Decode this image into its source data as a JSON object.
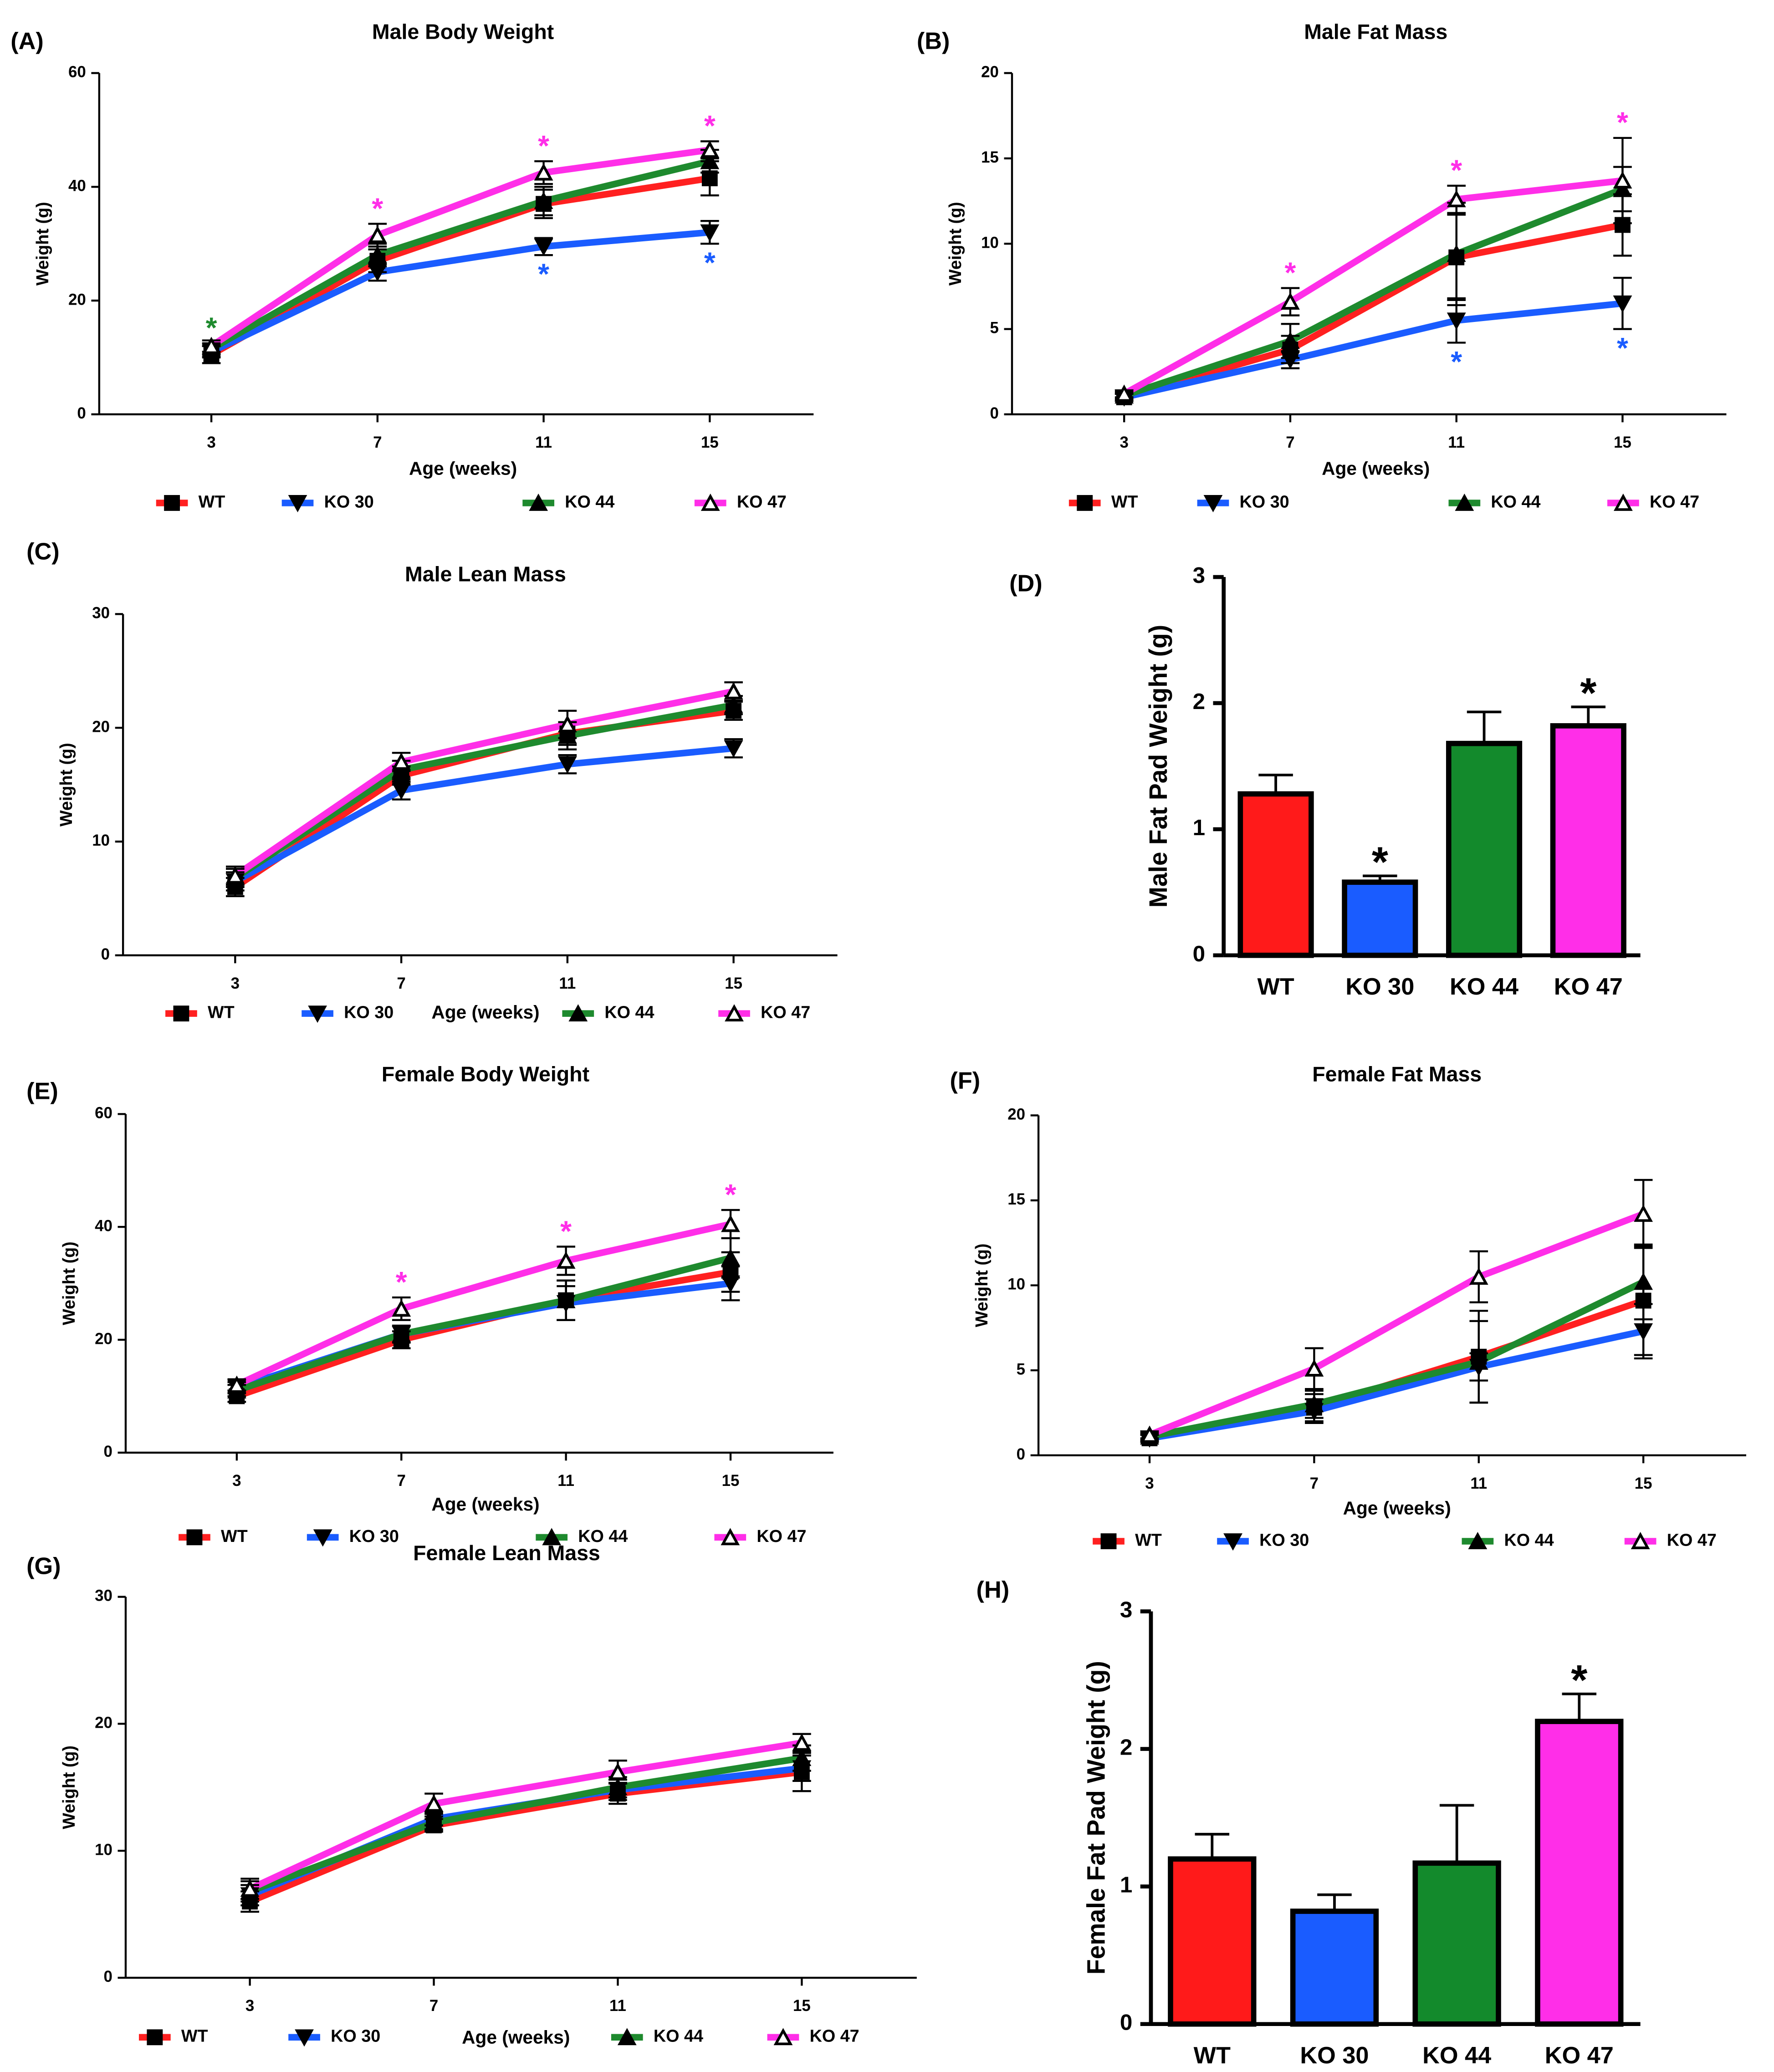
{
  "chart_data": [
    {
      "type": "line",
      "panel_label": "(A)",
      "title": "Male Body Weight",
      "x_label": "Age (weeks)",
      "y_label": "Weight (g)",
      "x": [
        3,
        7,
        11,
        15
      ],
      "xlim": [
        0.3,
        17.5
      ],
      "ylim": [
        0,
        60
      ],
      "xticks": [
        3,
        7,
        11,
        15
      ],
      "yticks": [
        0,
        20,
        40,
        60
      ],
      "series": [
        {
          "name": "WT",
          "color": "#ff2020",
          "marker": "square",
          "values": [
            10.5,
            27,
            37,
            41.5
          ],
          "errors": [
            1.5,
            2,
            2.5,
            3
          ]
        },
        {
          "name": "KO 30",
          "color": "#1a5cff",
          "marker": "triangle-down",
          "values": [
            11,
            25,
            29.5,
            32
          ],
          "errors": [
            1,
            1.5,
            1.5,
            2
          ],
          "significance": [
            null,
            null,
            "*",
            "*"
          ]
        },
        {
          "name": "KO 44",
          "color": "#1e8a2e",
          "marker": "triangle-up",
          "values": [
            11.5,
            28,
            37.5,
            44.5
          ],
          "errors": [
            1,
            2,
            2.5,
            2
          ],
          "significance": [
            "*",
            null,
            null,
            null
          ]
        },
        {
          "name": "KO 47",
          "color": "#ff2ee8",
          "marker": "triangle-up-open",
          "values": [
            12,
            31.5,
            42.5,
            46.5
          ],
          "errors": [
            1,
            2,
            2,
            1.5
          ],
          "significance": [
            null,
            "*",
            "*",
            "*"
          ]
        }
      ]
    },
    {
      "type": "line",
      "panel_label": "(B)",
      "title": "Male Fat Mass",
      "x_label": "Age (weeks)",
      "y_label": "Weight (g)",
      "x": [
        3,
        7,
        11,
        15
      ],
      "xlim": [
        0.3,
        17.5
      ],
      "ylim": [
        0,
        20
      ],
      "xticks": [
        3,
        7,
        11,
        15
      ],
      "yticks": [
        0,
        5,
        10,
        15,
        20
      ],
      "series": [
        {
          "name": "WT",
          "color": "#ff2020",
          "marker": "square",
          "values": [
            1,
            3.8,
            9.2,
            11.1
          ],
          "errors": [
            0.2,
            0.8,
            2.5,
            1.8
          ]
        },
        {
          "name": "KO 30",
          "color": "#1a5cff",
          "marker": "triangle-down",
          "values": [
            1,
            3.2,
            5.5,
            6.5
          ],
          "errors": [
            0.2,
            0.5,
            1.3,
            1.5
          ],
          "significance": [
            null,
            null,
            "*",
            "*"
          ]
        },
        {
          "name": "KO 44",
          "color": "#1e8a2e",
          "marker": "triangle-up",
          "values": [
            1.1,
            4.3,
            9.4,
            13.2
          ],
          "errors": [
            0.2,
            1,
            3,
            1.3
          ]
        },
        {
          "name": "KO 47",
          "color": "#ff2ee8",
          "marker": "triangle-up-open",
          "values": [
            1.2,
            6.6,
            12.6,
            13.7
          ],
          "errors": [
            0.2,
            0.8,
            0.8,
            2.5
          ],
          "significance": [
            null,
            "*",
            "*",
            "*"
          ]
        }
      ]
    },
    {
      "type": "line",
      "panel_label": "(C)",
      "title": "Male Lean Mass",
      "x_label": "Age (weeks)",
      "y_label": "Weight (g)",
      "x": [
        3,
        7,
        11,
        15
      ],
      "xlim": [
        0.3,
        17.5
      ],
      "ylim": [
        0,
        30
      ],
      "xticks": [
        3,
        7,
        11,
        15
      ],
      "yticks": [
        0,
        10,
        20,
        30
      ],
      "series": [
        {
          "name": "WT",
          "color": "#ff2020",
          "marker": "square",
          "values": [
            6,
            15.8,
            19.5,
            21.5
          ],
          "errors": [
            0.8,
            0.8,
            1,
            0.8
          ]
        },
        {
          "name": "KO 30",
          "color": "#1a5cff",
          "marker": "triangle-down",
          "values": [
            6.5,
            14.5,
            16.8,
            18.2
          ],
          "errors": [
            0.8,
            0.8,
            0.8,
            0.8
          ]
        },
        {
          "name": "KO 44",
          "color": "#1e8a2e",
          "marker": "triangle-up",
          "values": [
            6.8,
            16.3,
            19.3,
            22
          ],
          "errors": [
            0.8,
            0.8,
            1.2,
            0.8
          ]
        },
        {
          "name": "KO 47",
          "color": "#ff2ee8",
          "marker": "triangle-up-open",
          "values": [
            7,
            17,
            20.3,
            23.2
          ],
          "errors": [
            0.8,
            0.8,
            1.2,
            0.8
          ]
        }
      ]
    },
    {
      "type": "bar",
      "panel_label": "(D)",
      "y_label": "Male Fat Pad Weight (g)",
      "categories": [
        "WT",
        "KO 30",
        "KO 44",
        "KO 47"
      ],
      "values": [
        1.28,
        0.58,
        1.68,
        1.82
      ],
      "errors": [
        0.15,
        0.05,
        0.25,
        0.15
      ],
      "colors": [
        "#ff1a1a",
        "#1a5cff",
        "#138a2c",
        "#ff2ee8"
      ],
      "significance": [
        null,
        "*",
        null,
        "*"
      ],
      "ylim": [
        0,
        3
      ],
      "yticks": [
        0,
        1,
        2,
        3
      ]
    },
    {
      "type": "line",
      "panel_label": "(E)",
      "title": "Female Body Weight",
      "x_label": "Age (weeks)",
      "y_label": "Weight (g)",
      "x": [
        3,
        7,
        11,
        15
      ],
      "xlim": [
        0.3,
        17.5
      ],
      "ylim": [
        0,
        60
      ],
      "xticks": [
        3,
        7,
        11,
        15
      ],
      "yticks": [
        0,
        20,
        40,
        60
      ],
      "series": [
        {
          "name": "WT",
          "color": "#ff2020",
          "marker": "square",
          "values": [
            10,
            20,
            27,
            32
          ],
          "errors": [
            1,
            1.5,
            3.5,
            3.5
          ]
        },
        {
          "name": "KO 30",
          "color": "#1a5cff",
          "marker": "triangle-down",
          "values": [
            11.5,
            21,
            26.5,
            30
          ],
          "errors": [
            1,
            1.5,
            3,
            3
          ]
        },
        {
          "name": "KO 44",
          "color": "#1e8a2e",
          "marker": "triangle-up",
          "values": [
            11,
            21,
            27,
            34.5
          ],
          "errors": [
            1,
            1.5,
            3.5,
            3.5
          ]
        },
        {
          "name": "KO 47",
          "color": "#ff2ee8",
          "marker": "triangle-up-open",
          "values": [
            12,
            25.5,
            34,
            40.5
          ],
          "errors": [
            1,
            2,
            2.5,
            2.5
          ],
          "significance": [
            null,
            "*",
            "*",
            "*"
          ]
        }
      ]
    },
    {
      "type": "line",
      "panel_label": "(F)",
      "title": "Female Fat Mass",
      "x_label": "Age (weeks)",
      "y_label": "Weight (g)",
      "x": [
        3,
        7,
        11,
        15
      ],
      "xlim": [
        0.3,
        17.5
      ],
      "ylim": [
        0,
        20
      ],
      "xticks": [
        3,
        7,
        11,
        15
      ],
      "yticks": [
        0,
        5,
        10,
        15,
        20
      ],
      "series": [
        {
          "name": "WT",
          "color": "#ff2020",
          "marker": "square",
          "values": [
            1,
            2.8,
            5.8,
            9.1
          ],
          "errors": [
            0.2,
            0.8,
            2.7,
            3.2
          ]
        },
        {
          "name": "KO 30",
          "color": "#1a5cff",
          "marker": "triangle-down",
          "values": [
            1,
            2.6,
            5.2,
            7.3
          ],
          "errors": [
            0.2,
            0.7,
            0.8,
            1.6
          ]
        },
        {
          "name": "KO 44",
          "color": "#1e8a2e",
          "marker": "triangle-up",
          "values": [
            1.1,
            3,
            5.5,
            10.2
          ],
          "errors": [
            0.2,
            0.8,
            2.4,
            2.2
          ]
        },
        {
          "name": "KO 47",
          "color": "#ff2ee8",
          "marker": "triangle-up-open",
          "values": [
            1.2,
            5.1,
            10.5,
            14.2
          ],
          "errors": [
            0.2,
            1.2,
            1.5,
            2
          ]
        }
      ],
      "significance_series": null
    },
    {
      "type": "line",
      "panel_label": "(G)",
      "title": "Female Lean Mass",
      "x_label": "Age (weeks)",
      "y_label": "Weight (g)",
      "x": [
        3,
        7,
        11,
        15
      ],
      "xlim": [
        0.3,
        17.5
      ],
      "ylim": [
        0,
        30
      ],
      "xticks": [
        3,
        7,
        11,
        15
      ],
      "yticks": [
        0,
        10,
        20,
        30
      ],
      "series": [
        {
          "name": "WT",
          "color": "#ff2020",
          "marker": "square",
          "values": [
            6,
            12,
            14.5,
            16.2
          ],
          "errors": [
            0.8,
            0.5,
            0.8,
            1.5
          ]
        },
        {
          "name": "KO 30",
          "color": "#1a5cff",
          "marker": "triangle-down",
          "values": [
            6.5,
            12.5,
            14.8,
            16.5
          ],
          "errors": [
            0.8,
            0.5,
            0.8,
            1
          ]
        },
        {
          "name": "KO 44",
          "color": "#1e8a2e",
          "marker": "triangle-up",
          "values": [
            6.8,
            12.2,
            15,
            17.3
          ],
          "errors": [
            0.8,
            0.5,
            0.8,
            1
          ]
        },
        {
          "name": "KO 47",
          "color": "#ff2ee8",
          "marker": "triangle-up-open",
          "values": [
            7,
            13.7,
            16.2,
            18.5
          ],
          "errors": [
            0.8,
            0.8,
            0.9,
            0.7
          ]
        }
      ]
    },
    {
      "type": "bar",
      "panel_label": "(H)",
      "y_label": "Female Fat Pad Weight (g)",
      "categories": [
        "WT",
        "KO 30",
        "KO 44",
        "KO 47"
      ],
      "values": [
        1.2,
        0.82,
        1.17,
        2.2
      ],
      "errors": [
        0.18,
        0.12,
        0.42,
        0.2
      ],
      "colors": [
        "#ff1a1a",
        "#1a5cff",
        "#138a2c",
        "#ff2ee8"
      ],
      "significance": [
        null,
        null,
        null,
        "*"
      ],
      "ylim": [
        0,
        3
      ],
      "yticks": [
        0,
        1,
        2,
        3
      ]
    }
  ]
}
